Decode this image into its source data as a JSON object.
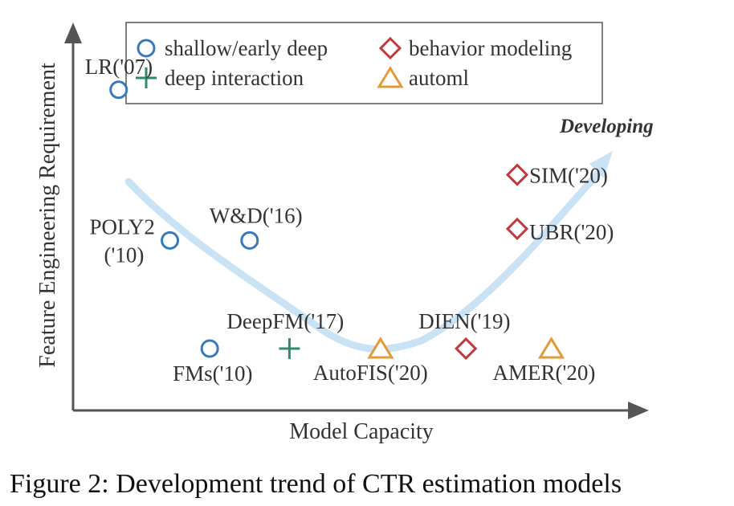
{
  "chart_data": {
    "type": "scatter",
    "xlabel": "Model Capacity",
    "ylabel": "Feature Engineering Requirement",
    "caption": "Figure 2: Development trend of CTR estimation models",
    "trend_label": "Developing",
    "grid": false,
    "legend": {
      "placement": "top",
      "entries": [
        {
          "category": "shallow",
          "label": "shallow/early deep"
        },
        {
          "category": "behavior",
          "label": "behavior modeling"
        },
        {
          "category": "interaction",
          "label": "deep interaction"
        },
        {
          "category": "automl",
          "label": "automl"
        }
      ]
    },
    "categories": {
      "shallow": {
        "marker": "circle",
        "color": "#3a78b8"
      },
      "interaction": {
        "marker": "plus",
        "color": "#2e8b6e"
      },
      "behavior": {
        "marker": "diamond",
        "color": "#c0393b"
      },
      "automl": {
        "marker": "triangle",
        "color": "#e39a3a"
      }
    },
    "xlim": [
      0,
      100
    ],
    "ylim": [
      0,
      100
    ],
    "points": [
      {
        "name": "LR('07)",
        "category": "shallow",
        "x": 8,
        "y": 83
      },
      {
        "name": "POLY2 ('10)",
        "category": "shallow",
        "x": 17,
        "y": 44
      },
      {
        "name": "W&D('16)",
        "category": "shallow",
        "x": 31,
        "y": 44
      },
      {
        "name": "FMs('10)",
        "category": "shallow",
        "x": 24,
        "y": 16
      },
      {
        "name": "DeepFM('17)",
        "category": "interaction",
        "x": 38,
        "y": 16
      },
      {
        "name": "AutoFIS('20)",
        "category": "automl",
        "x": 54,
        "y": 16
      },
      {
        "name": "DIEN('19)",
        "category": "behavior",
        "x": 69,
        "y": 16
      },
      {
        "name": "AMER('20)",
        "category": "automl",
        "x": 84,
        "y": 16
      },
      {
        "name": "SIM('20)",
        "category": "behavior",
        "x": 78,
        "y": 61
      },
      {
        "name": "UBR('20)",
        "category": "behavior",
        "x": 78,
        "y": 47
      }
    ],
    "trend_color": "#c9e3f5"
  }
}
